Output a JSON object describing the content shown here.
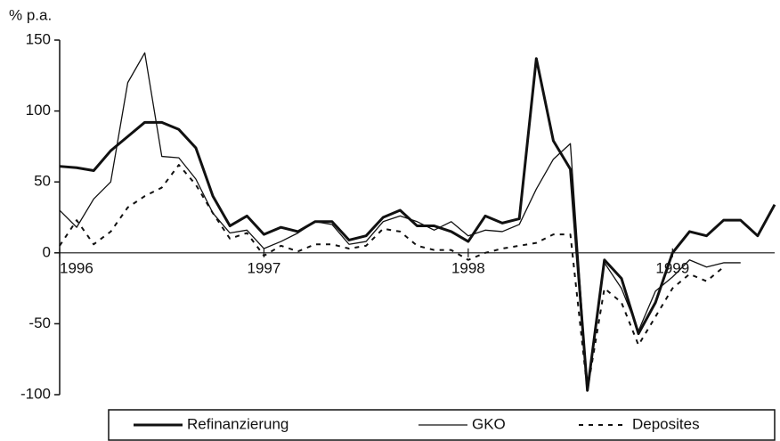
{
  "chart_data": {
    "type": "line",
    "y_label": "% p.a.",
    "x": [
      0,
      1,
      2,
      3,
      4,
      5,
      6,
      7,
      8,
      9,
      10,
      11,
      12,
      13,
      14,
      15,
      16,
      17,
      18,
      19,
      20,
      21,
      22,
      23,
      24,
      25,
      26,
      27,
      28,
      29,
      30,
      31,
      32,
      33,
      34,
      35,
      36,
      37,
      38,
      39,
      40,
      41,
      42
    ],
    "xlim": [
      0,
      42
    ],
    "xticks": [
      {
        "value": 0,
        "label": "1996"
      },
      {
        "value": 12,
        "label": "1997"
      },
      {
        "value": 24,
        "label": "1998"
      },
      {
        "value": 36,
        "label": "1999"
      }
    ],
    "ylim": [
      -100,
      150
    ],
    "yticks": [
      -100,
      -50,
      0,
      50,
      100,
      150
    ],
    "series": [
      {
        "name": "Refinanzierung",
        "color": "#111111",
        "width": 3,
        "dashed": false,
        "values": [
          61,
          60,
          58,
          72,
          82,
          92,
          92,
          87,
          74,
          40,
          19,
          26,
          13,
          18,
          15,
          22,
          22,
          9,
          12,
          25,
          30,
          19,
          19,
          15,
          8,
          26,
          21,
          24,
          137,
          79,
          59,
          -97,
          -5,
          -18,
          -57,
          -35,
          0,
          15,
          12,
          23,
          23,
          12,
          34
        ]
      },
      {
        "name": "GKO",
        "color": "#111111",
        "width": 1.3,
        "dashed": false,
        "values": [
          30,
          18,
          38,
          50,
          120,
          141,
          68,
          67,
          52,
          28,
          14,
          16,
          3,
          8,
          14,
          22,
          20,
          6,
          8,
          22,
          26,
          22,
          16,
          22,
          12,
          16,
          15,
          20,
          45,
          66,
          77,
          -97,
          -7,
          -25,
          -55,
          -27,
          -17,
          -5,
          -10,
          -7,
          -7,
          null,
          null
        ]
      },
      {
        "name": "Deposites",
        "color": "#111111",
        "width": 2,
        "dashed": true,
        "values": [
          5,
          23,
          6,
          15,
          32,
          40,
          46,
          62,
          48,
          28,
          10,
          14,
          -2,
          5,
          1,
          6,
          6,
          3,
          5,
          17,
          15,
          5,
          2,
          2,
          -5,
          0,
          3,
          5,
          7,
          13,
          13,
          -97,
          -25,
          -35,
          -65,
          -45,
          -25,
          -15,
          -20,
          -10,
          null,
          null,
          null
        ]
      }
    ]
  }
}
